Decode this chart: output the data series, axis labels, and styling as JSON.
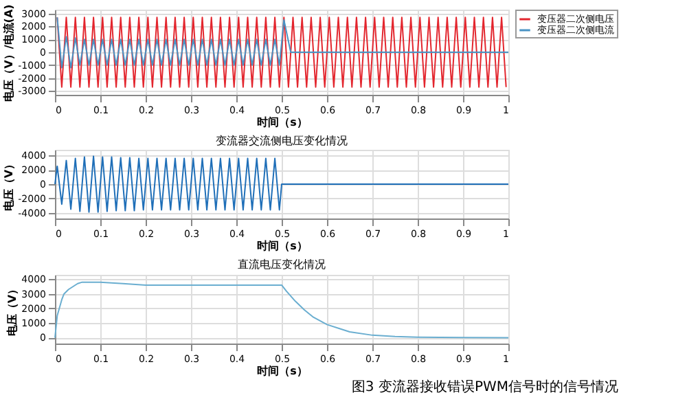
{
  "chart_data": [
    {
      "type": "line",
      "xlabel": "时间（s）",
      "ylabel": "电压（V）/电流(A)",
      "xlim": [
        0,
        1
      ],
      "ylim": [
        -3300,
        3300
      ],
      "xticks": [
        0,
        0.1,
        0.2,
        0.3,
        0.4,
        0.5,
        0.6,
        0.7,
        0.8,
        0.9,
        1
      ],
      "yticks": [
        -3000,
        -2000,
        -1000,
        0,
        1000,
        2000,
        3000
      ],
      "grid": true,
      "legend": "right",
      "series": [
        {
          "name": "变压器二次侧电压",
          "color": "#e3262e",
          "x": [
            0.005,
            0.015,
            0.025,
            0.035,
            0.045,
            0.055,
            0.065,
            0.075,
            0.085,
            0.095,
            0.105,
            0.115,
            0.125,
            0.135,
            0.145,
            0.155,
            0.165,
            0.175,
            0.185,
            0.195,
            0.205,
            0.215,
            0.225,
            0.235,
            0.245,
            0.255,
            0.265,
            0.275,
            0.285,
            0.295,
            0.305,
            0.315,
            0.325,
            0.335,
            0.345,
            0.355,
            0.365,
            0.375,
            0.385,
            0.395,
            0.405,
            0.415,
            0.425,
            0.435,
            0.445,
            0.455,
            0.465,
            0.475,
            0.485,
            0.495,
            0.505,
            0.515,
            0.525,
            0.535,
            0.545,
            0.555,
            0.565,
            0.575,
            0.585,
            0.595,
            0.605,
            0.615,
            0.625,
            0.635,
            0.645,
            0.655,
            0.665,
            0.675,
            0.685,
            0.695,
            0.705,
            0.715,
            0.725,
            0.735,
            0.745,
            0.755,
            0.765,
            0.775,
            0.785,
            0.795,
            0.805,
            0.815,
            0.825,
            0.835,
            0.845,
            0.855,
            0.865,
            0.875,
            0.885,
            0.895,
            0.905,
            0.915,
            0.925,
            0.935,
            0.945,
            0.955,
            0.965,
            0.975,
            0.985,
            0.995
          ],
          "values": [
            2700,
            -2700,
            2700,
            -2700,
            2700,
            -2700,
            2700,
            -2700,
            2700,
            -2700,
            2700,
            -2700,
            2700,
            -2700,
            2700,
            -2700,
            2700,
            -2700,
            2700,
            -2700,
            2700,
            -2700,
            2700,
            -2700,
            2700,
            -2700,
            2700,
            -2700,
            2700,
            -2700,
            2700,
            -2700,
            2700,
            -2700,
            2700,
            -2700,
            2700,
            -2700,
            2700,
            -2700,
            2700,
            -2700,
            2700,
            -2700,
            2700,
            -2700,
            2700,
            -2700,
            2700,
            -2700,
            2700,
            -2700,
            2700,
            -2700,
            2700,
            -2700,
            2700,
            -2700,
            2700,
            -2700,
            2700,
            -2700,
            2700,
            -2700,
            2700,
            -2700,
            2700,
            -2700,
            2700,
            -2700,
            2700,
            -2700,
            2700,
            -2700,
            2700,
            -2700,
            2700,
            -2700,
            2700,
            -2700,
            2700,
            -2700,
            2700,
            -2700,
            2700,
            -2700,
            2700,
            -2700,
            2700,
            -2700,
            2700,
            -2700,
            2700,
            -2700,
            2700,
            -2700,
            2700,
            -2700,
            2700,
            -2700
          ]
        },
        {
          "name": "变压器二次侧电流",
          "color": "#4a93c4",
          "x": [
            0.005,
            0.015,
            0.025,
            0.035,
            0.045,
            0.055,
            0.065,
            0.075,
            0.085,
            0.095,
            0.105,
            0.115,
            0.125,
            0.135,
            0.145,
            0.155,
            0.165,
            0.175,
            0.185,
            0.195,
            0.205,
            0.215,
            0.225,
            0.235,
            0.245,
            0.255,
            0.265,
            0.275,
            0.285,
            0.295,
            0.305,
            0.315,
            0.325,
            0.335,
            0.345,
            0.355,
            0.365,
            0.375,
            0.385,
            0.395,
            0.405,
            0.415,
            0.425,
            0.435,
            0.445,
            0.455,
            0.465,
            0.475,
            0.485,
            0.495,
            0.505,
            0.52,
            1
          ],
          "values": [
            2700,
            -1200,
            1200,
            -1200,
            1100,
            -1000,
            1000,
            -1000,
            1000,
            -1000,
            1000,
            -1000,
            1000,
            -1000,
            1000,
            -1000,
            1000,
            -1000,
            1000,
            -1000,
            1000,
            -1000,
            1000,
            -1000,
            1000,
            -1000,
            1000,
            -1000,
            1000,
            -1000,
            1000,
            -1000,
            1000,
            -1000,
            1000,
            -1000,
            1000,
            -1000,
            1000,
            -1000,
            1000,
            -1000,
            1000,
            -1000,
            1000,
            -1000,
            1000,
            -1000,
            1000,
            -1000,
            2500,
            0,
            0
          ]
        }
      ]
    },
    {
      "type": "line",
      "title": "变流器交流侧电压变化情况",
      "xlabel": "时间（s）",
      "ylabel": "电压（V）",
      "xlim": [
        0,
        1
      ],
      "ylim": [
        -4800,
        4800
      ],
      "xticks": [
        0,
        0.1,
        0.2,
        0.3,
        0.4,
        0.5,
        0.6,
        0.7,
        0.8,
        0.9,
        1
      ],
      "yticks": [
        -4000,
        -2000,
        0,
        2000,
        4000
      ],
      "grid": true,
      "series": [
        {
          "color": "#1f6fb8",
          "x": [
            0,
            0.005,
            0.015,
            0.025,
            0.035,
            0.045,
            0.055,
            0.065,
            0.075,
            0.085,
            0.095,
            0.105,
            0.115,
            0.125,
            0.135,
            0.145,
            0.155,
            0.165,
            0.175,
            0.185,
            0.195,
            0.205,
            0.215,
            0.225,
            0.235,
            0.245,
            0.255,
            0.265,
            0.275,
            0.285,
            0.295,
            0.305,
            0.315,
            0.325,
            0.335,
            0.345,
            0.355,
            0.365,
            0.375,
            0.385,
            0.395,
            0.405,
            0.415,
            0.425,
            0.435,
            0.445,
            0.455,
            0.465,
            0.475,
            0.485,
            0.495,
            0.5,
            1
          ],
          "values": [
            0,
            2500,
            -2800,
            3300,
            -3500,
            3600,
            -3800,
            3800,
            -3900,
            3900,
            -3900,
            3800,
            -3800,
            3800,
            -3700,
            3700,
            -3700,
            3700,
            -3700,
            3600,
            -3600,
            3600,
            -3600,
            3600,
            -3600,
            3600,
            -3600,
            3600,
            -3600,
            3600,
            -3600,
            3600,
            -3600,
            3600,
            -3600,
            3600,
            -3600,
            3600,
            -3600,
            3600,
            -3600,
            3600,
            -3600,
            3600,
            -3600,
            3600,
            -3600,
            3600,
            -3600,
            3600,
            -3600,
            0,
            0
          ]
        }
      ]
    },
    {
      "type": "line",
      "title": "直流电压变化情况",
      "xlabel": "时间（s）",
      "ylabel": "电压（V）",
      "xlim": [
        0,
        1
      ],
      "ylim": [
        -400,
        4300
      ],
      "xticks": [
        0,
        0.1,
        0.2,
        0.3,
        0.4,
        0.5,
        0.6,
        0.7,
        0.8,
        0.9,
        1
      ],
      "yticks": [
        0,
        1000,
        2000,
        3000,
        4000
      ],
      "grid": true,
      "annotations": [
        "图3 变流器接收错误PWM信号时的信号情况"
      ],
      "series": [
        {
          "color": "#6aaed0",
          "x": [
            0,
            0.005,
            0.015,
            0.02,
            0.03,
            0.04,
            0.05,
            0.06,
            0.08,
            0.1,
            0.15,
            0.2,
            0.3,
            0.4,
            0.5,
            0.51,
            0.53,
            0.55,
            0.57,
            0.6,
            0.63,
            0.65,
            0.7,
            0.75,
            0.8,
            0.9,
            1
          ],
          "values": [
            0,
            1500,
            2600,
            3000,
            3300,
            3500,
            3700,
            3800,
            3800,
            3800,
            3700,
            3600,
            3600,
            3600,
            3600,
            3200,
            2500,
            1900,
            1400,
            900,
            600,
            400,
            170,
            80,
            40,
            10,
            0
          ]
        }
      ]
    }
  ]
}
